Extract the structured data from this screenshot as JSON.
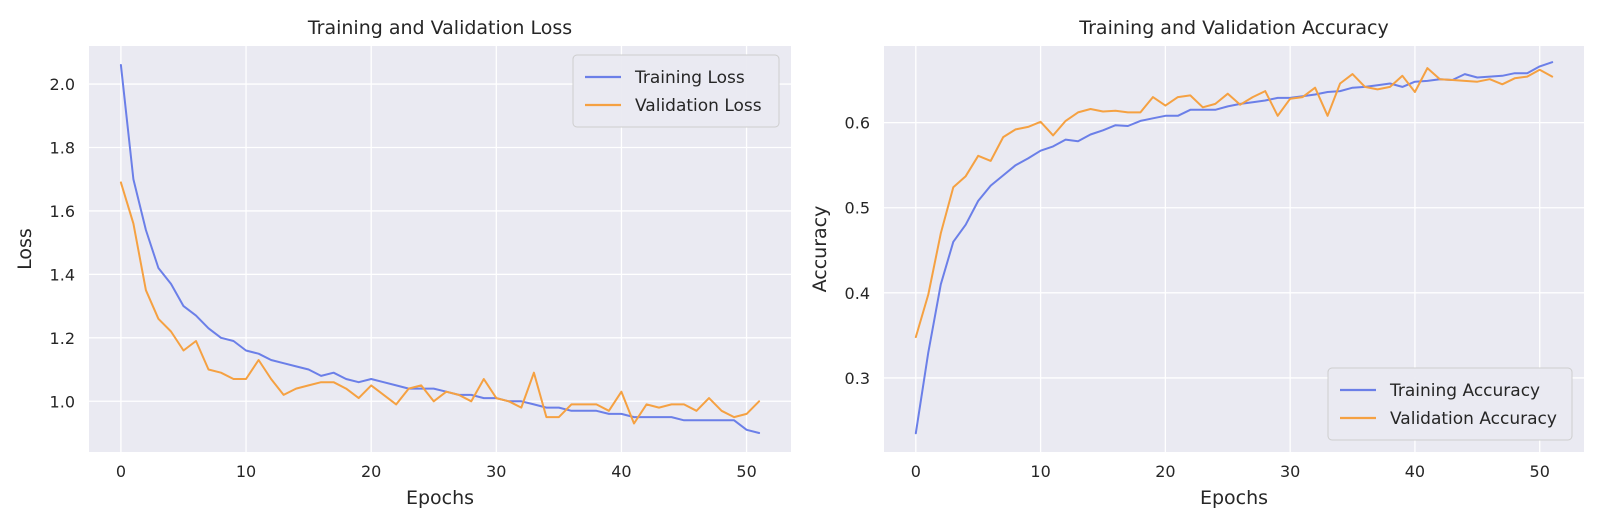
{
  "chart_data": [
    {
      "type": "line",
      "title": "Training and Validation Loss",
      "xlabel": "Epochs",
      "ylabel": "Loss",
      "xlim": [
        -2.55,
        53.55
      ],
      "ylim": [
        0.84,
        2.12
      ],
      "xticks": [
        0,
        10,
        20,
        30,
        40,
        50
      ],
      "yticks": [
        1.0,
        1.2,
        1.4,
        1.6,
        1.8,
        2.0
      ],
      "ytick_labels": [
        "1.0",
        "1.2",
        "1.4",
        "1.6",
        "1.8",
        "2.0"
      ],
      "grid": true,
      "legend": "top-right",
      "series": [
        {
          "name": "Training Loss",
          "color": "#6b7fe8",
          "values": [
            2.06,
            1.7,
            1.54,
            1.42,
            1.37,
            1.3,
            1.27,
            1.23,
            1.2,
            1.19,
            1.16,
            1.15,
            1.13,
            1.12,
            1.11,
            1.1,
            1.08,
            1.09,
            1.07,
            1.06,
            1.07,
            1.06,
            1.05,
            1.04,
            1.04,
            1.04,
            1.03,
            1.02,
            1.02,
            1.01,
            1.01,
            1.0,
            1.0,
            0.99,
            0.98,
            0.98,
            0.97,
            0.97,
            0.97,
            0.96,
            0.96,
            0.95,
            0.95,
            0.95,
            0.95,
            0.94,
            0.94,
            0.94,
            0.94,
            0.94,
            0.91,
            0.9
          ]
        },
        {
          "name": "Validation Loss",
          "color": "#f5a142",
          "values": [
            1.69,
            1.56,
            1.35,
            1.26,
            1.22,
            1.16,
            1.19,
            1.1,
            1.09,
            1.07,
            1.07,
            1.13,
            1.07,
            1.02,
            1.04,
            1.05,
            1.06,
            1.06,
            1.04,
            1.01,
            1.05,
            1.02,
            0.99,
            1.04,
            1.05,
            1.0,
            1.03,
            1.02,
            1.0,
            1.07,
            1.01,
            1.0,
            0.98,
            1.09,
            0.95,
            0.95,
            0.99,
            0.99,
            0.99,
            0.97,
            1.03,
            0.93,
            0.99,
            0.98,
            0.99,
            0.99,
            0.97,
            1.01,
            0.97,
            0.95,
            0.96,
            1.0
          ]
        }
      ]
    },
    {
      "type": "line",
      "title": "Training and Validation Accuracy",
      "xlabel": "Epochs",
      "ylabel": "Accuracy",
      "xlim": [
        -2.55,
        53.55
      ],
      "ylim": [
        0.213,
        0.69
      ],
      "xticks": [
        0,
        10,
        20,
        30,
        40,
        50
      ],
      "yticks": [
        0.3,
        0.4,
        0.5,
        0.6
      ],
      "ytick_labels": [
        "0.3",
        "0.4",
        "0.5",
        "0.6"
      ],
      "grid": true,
      "legend": "bottom-right",
      "series": [
        {
          "name": "Training Accuracy",
          "color": "#6b7fe8",
          "values": [
            0.235,
            0.33,
            0.41,
            0.46,
            0.48,
            0.508,
            0.526,
            0.538,
            0.55,
            0.558,
            0.567,
            0.572,
            0.58,
            0.578,
            0.586,
            0.591,
            0.597,
            0.596,
            0.602,
            0.605,
            0.608,
            0.608,
            0.615,
            0.615,
            0.615,
            0.619,
            0.622,
            0.624,
            0.626,
            0.629,
            0.629,
            0.631,
            0.633,
            0.636,
            0.637,
            0.641,
            0.642,
            0.644,
            0.646,
            0.642,
            0.648,
            0.649,
            0.651,
            0.65,
            0.657,
            0.653,
            0.654,
            0.655,
            0.658,
            0.658,
            0.666,
            0.671
          ]
        },
        {
          "name": "Validation Accuracy",
          "color": "#f5a142",
          "values": [
            0.348,
            0.398,
            0.47,
            0.524,
            0.537,
            0.561,
            0.555,
            0.583,
            0.592,
            0.595,
            0.601,
            0.585,
            0.602,
            0.612,
            0.616,
            0.613,
            0.614,
            0.612,
            0.612,
            0.63,
            0.62,
            0.63,
            0.632,
            0.618,
            0.622,
            0.634,
            0.621,
            0.63,
            0.637,
            0.608,
            0.628,
            0.63,
            0.641,
            0.608,
            0.646,
            0.657,
            0.642,
            0.639,
            0.642,
            0.655,
            0.636,
            0.664,
            0.651,
            0.65,
            0.649,
            0.648,
            0.651,
            0.645,
            0.652,
            0.654,
            0.662,
            0.654
          ]
        }
      ]
    }
  ]
}
